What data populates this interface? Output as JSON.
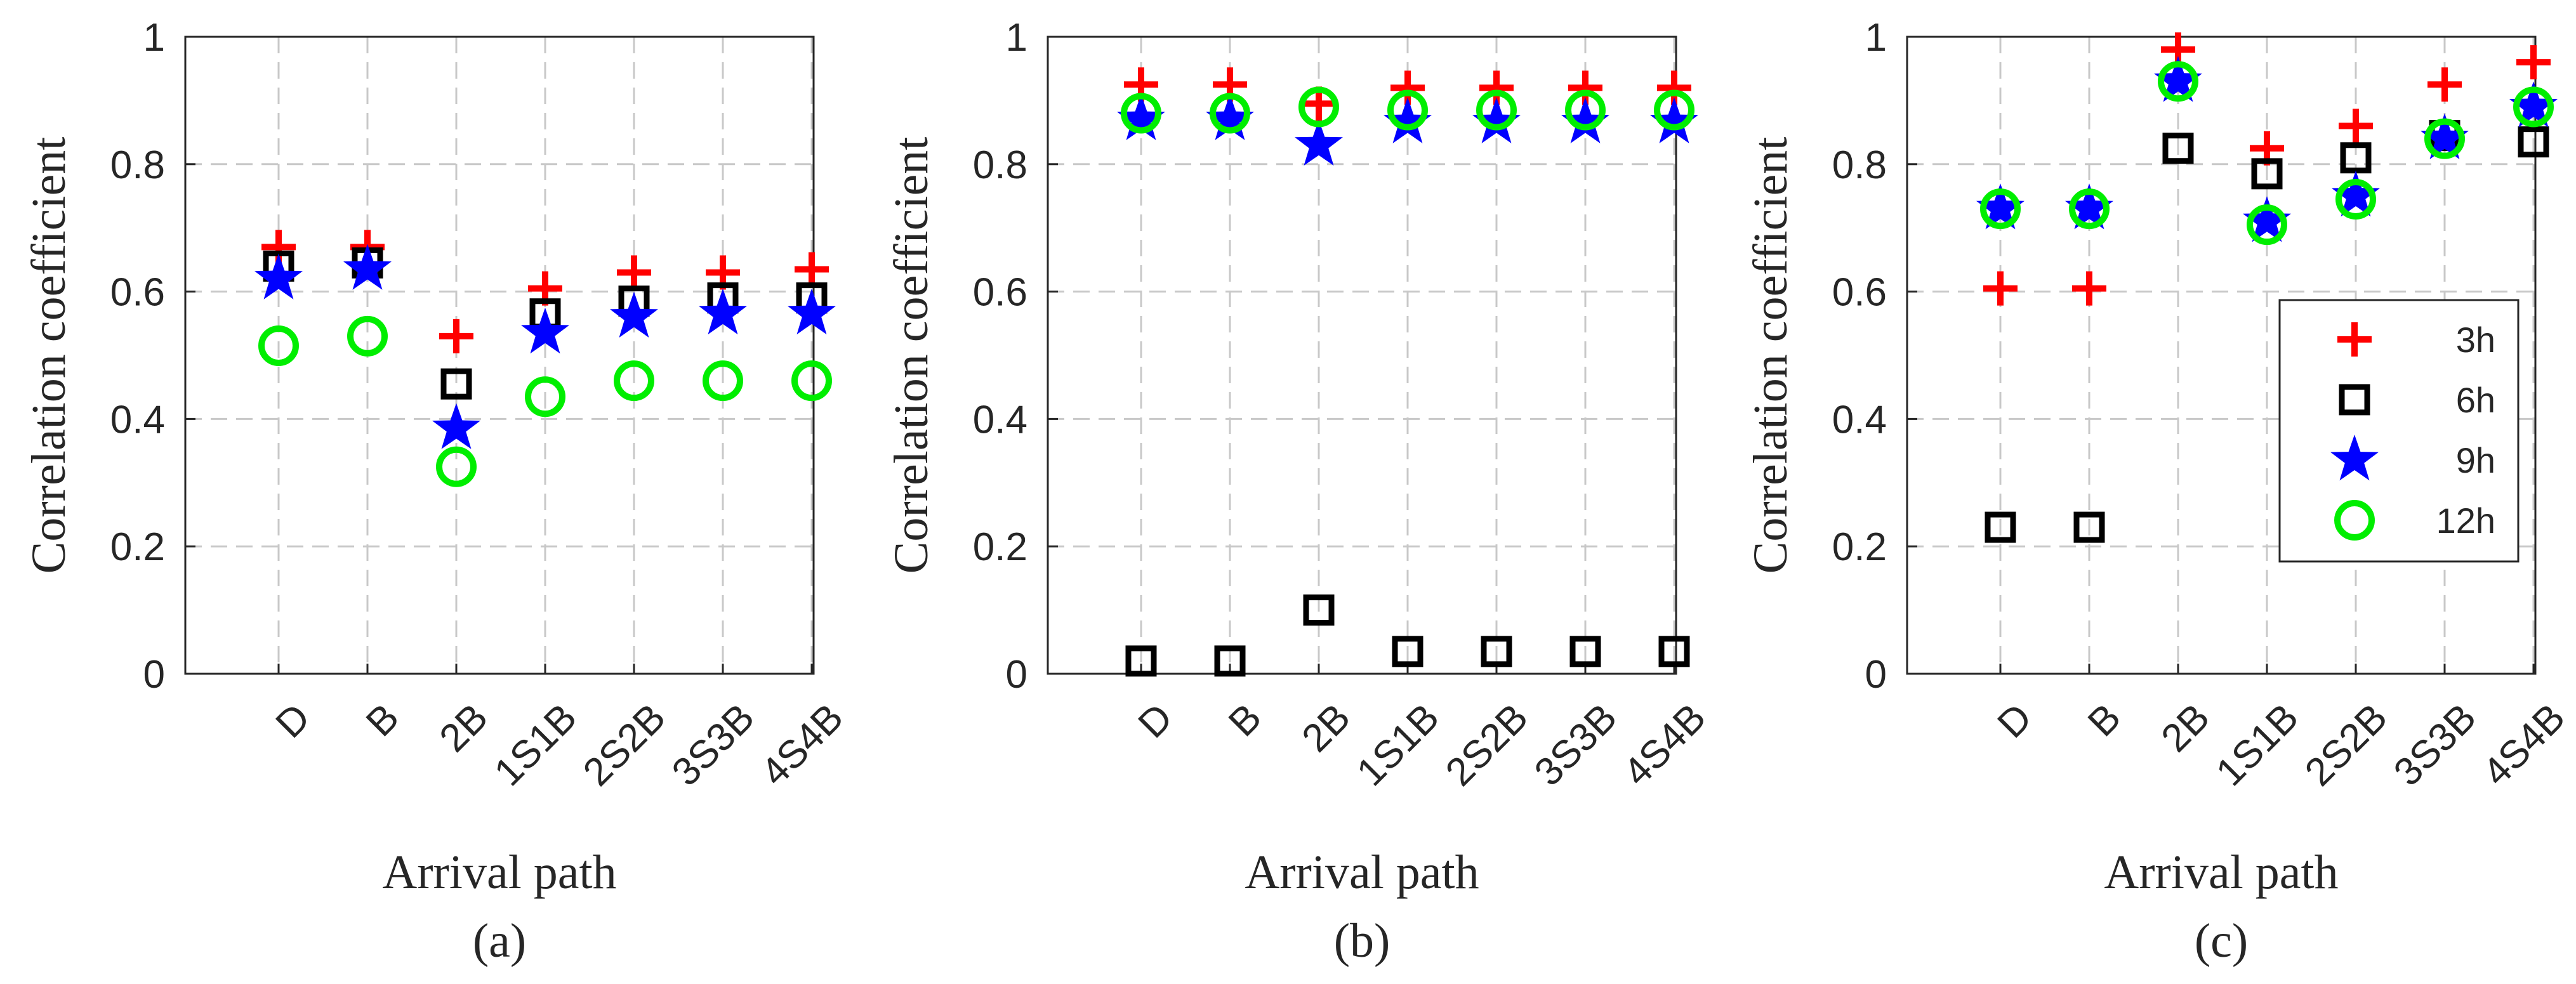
{
  "chart_data": [
    {
      "type": "scatter",
      "caption": "(a)",
      "xlabel": "Arrival path",
      "ylabel": "Correlation coefficient",
      "categories": [
        "D",
        "B",
        "2B",
        "1S1B",
        "2S2B",
        "3S3B",
        "4S4B"
      ],
      "ylim": [
        0,
        1
      ],
      "yticks": [
        "0",
        "0.2",
        "0.4",
        "0.6",
        "0.8",
        "1"
      ],
      "grid": true,
      "series": [
        {
          "name": "3h",
          "marker": "plus",
          "color": "#ff0000",
          "values": [
            0.67,
            0.67,
            0.53,
            0.605,
            0.63,
            0.63,
            0.635
          ]
        },
        {
          "name": "6h",
          "marker": "square",
          "color": "#000000",
          "values": [
            0.64,
            0.645,
            0.455,
            0.565,
            0.585,
            0.59,
            0.59
          ]
        },
        {
          "name": "9h",
          "marker": "star",
          "color": "#0000ff",
          "values": [
            0.62,
            0.635,
            0.385,
            0.535,
            0.56,
            0.565,
            0.565
          ]
        },
        {
          "name": "12h",
          "marker": "circle",
          "color": "#00ee00",
          "values": [
            0.515,
            0.53,
            0.325,
            0.435,
            0.46,
            0.46,
            0.46
          ]
        }
      ]
    },
    {
      "type": "scatter",
      "caption": "(b)",
      "xlabel": "Arrival path",
      "ylabel": "Correlation coefficient",
      "categories": [
        "D",
        "B",
        "2B",
        "1S1B",
        "2S2B",
        "3S3B",
        "4S4B"
      ],
      "ylim": [
        0,
        1
      ],
      "yticks": [
        "0",
        "0.2",
        "0.4",
        "0.6",
        "0.8",
        "1"
      ],
      "grid": true,
      "series": [
        {
          "name": "3h",
          "marker": "plus",
          "color": "#ff0000",
          "values": [
            0.925,
            0.925,
            0.895,
            0.92,
            0.92,
            0.92,
            0.92
          ]
        },
        {
          "name": "6h",
          "marker": "square",
          "color": "#000000",
          "values": [
            0.02,
            0.02,
            0.1,
            0.035,
            0.035,
            0.035,
            0.035
          ]
        },
        {
          "name": "9h",
          "marker": "star",
          "color": "#0000ff",
          "values": [
            0.87,
            0.87,
            0.83,
            0.865,
            0.865,
            0.865,
            0.865
          ]
        },
        {
          "name": "12h",
          "marker": "circle",
          "color": "#00ee00",
          "values": [
            0.88,
            0.88,
            0.89,
            0.885,
            0.885,
            0.885,
            0.885
          ]
        }
      ]
    },
    {
      "type": "scatter",
      "caption": "(c)",
      "xlabel": "Arrival path",
      "ylabel": "Correlation coefficient",
      "categories": [
        "D",
        "B",
        "2B",
        "1S1B",
        "2S2B",
        "3S3B",
        "4S4B"
      ],
      "ylim": [
        0,
        1
      ],
      "yticks": [
        "0",
        "0.2",
        "0.4",
        "0.6",
        "0.8",
        "1"
      ],
      "grid": true,
      "legend": {
        "placement": "right",
        "entries": [
          "3h",
          "6h",
          "9h",
          "12h"
        ]
      },
      "series": [
        {
          "name": "3h",
          "marker": "plus",
          "color": "#ff0000",
          "values": [
            0.605,
            0.605,
            0.98,
            0.825,
            0.86,
            0.925,
            0.96
          ]
        },
        {
          "name": "6h",
          "marker": "square",
          "color": "#000000",
          "values": [
            0.23,
            0.23,
            0.825,
            0.785,
            0.81,
            0.845,
            0.835
          ]
        },
        {
          "name": "9h",
          "marker": "star",
          "color": "#0000ff",
          "values": [
            0.73,
            0.73,
            0.93,
            0.71,
            0.75,
            0.84,
            0.89
          ]
        },
        {
          "name": "12h",
          "marker": "circle",
          "color": "#00ee00",
          "values": [
            0.73,
            0.73,
            0.93,
            0.705,
            0.745,
            0.84,
            0.89
          ]
        }
      ]
    }
  ]
}
